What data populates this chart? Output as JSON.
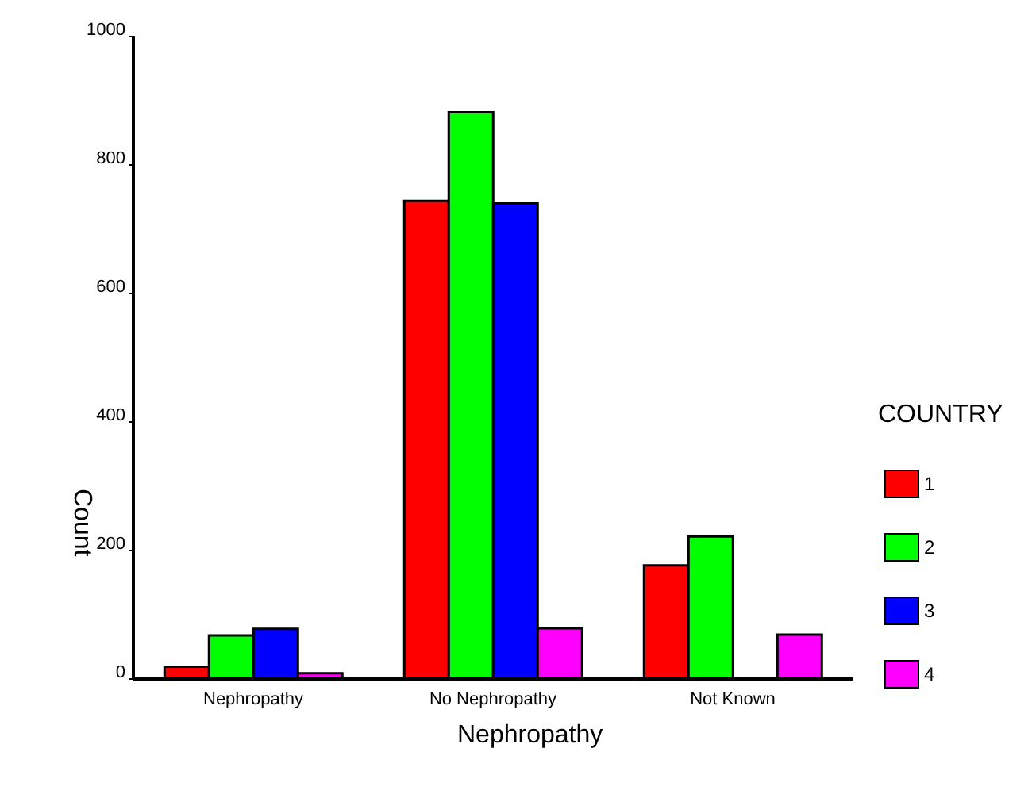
{
  "chart_data": {
    "type": "bar",
    "xlabel": "Nephropathy",
    "ylabel": "Count",
    "legend_title": "COUNTRY",
    "categories": [
      "Nephropathy",
      "No Nephropathy",
      "Not Known"
    ],
    "series": [
      {
        "name": "1",
        "color": "#ff0000",
        "values": [
          19,
          744,
          177
        ]
      },
      {
        "name": "2",
        "color": "#00ff00",
        "values": [
          68,
          882,
          222
        ]
      },
      {
        "name": "3",
        "color": "#0000ff",
        "values": [
          78,
          740,
          0
        ]
      },
      {
        "name": "4",
        "color": "#ff00ff",
        "values": [
          9,
          79,
          69
        ]
      }
    ],
    "ylim": [
      0,
      1000
    ],
    "yticks": [
      0,
      200,
      400,
      600,
      800,
      1000
    ],
    "grid": false,
    "legend": "right"
  }
}
